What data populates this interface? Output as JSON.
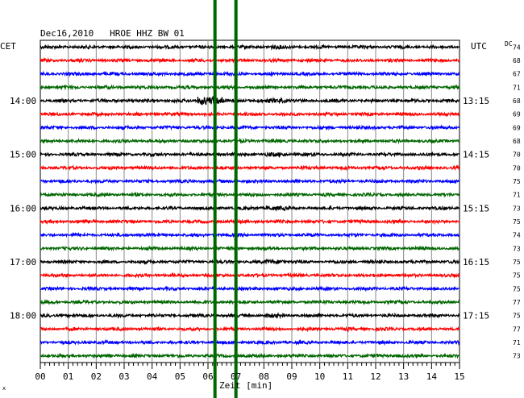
{
  "header": {
    "title": "Dec16,2010   HROE HHZ BW 01",
    "left_zone": "CET",
    "right_zone": "UTC",
    "dc_label": "DC"
  },
  "xaxis": {
    "label": "Zeit [min]",
    "ticks": [
      "00",
      "01",
      "02",
      "03",
      "04",
      "05",
      "06",
      "07",
      "08",
      "09",
      "10",
      "11",
      "12",
      "13",
      "14",
      "15"
    ]
  },
  "chart_data": {
    "type": "line",
    "title": "Dec16,2010   HROE HHZ BW 01",
    "xlabel": "Zeit [min]",
    "ylabel": "",
    "xlim": [
      0,
      15
    ],
    "grid": true,
    "rows_per_hour": 4,
    "left_time_labels": [
      {
        "row": 4,
        "text": "14:00"
      },
      {
        "row": 8,
        "text": "15:00"
      },
      {
        "row": 12,
        "text": "16:00"
      },
      {
        "row": 16,
        "text": "17:00"
      },
      {
        "row": 20,
        "text": "18:00"
      }
    ],
    "right_time_labels": [
      {
        "row": 4,
        "text": "13:15"
      },
      {
        "row": 8,
        "text": "14:15"
      },
      {
        "row": 12,
        "text": "15:15"
      },
      {
        "row": 16,
        "text": "16:15"
      },
      {
        "row": 20,
        "text": "17:15"
      }
    ],
    "trace_colors": [
      "#000000",
      "#ff0000",
      "#0000ff",
      "#006600"
    ],
    "dc_values": [
      74,
      68,
      67,
      71,
      68,
      69,
      69,
      68,
      70,
      70,
      75,
      71,
      73,
      75,
      74,
      73,
      75,
      75,
      75,
      77,
      75,
      77,
      71,
      73
    ],
    "event_markers": [
      {
        "minute": 6.25,
        "color": "#006600"
      },
      {
        "minute": 7.0,
        "color": "#006600"
      }
    ]
  }
}
